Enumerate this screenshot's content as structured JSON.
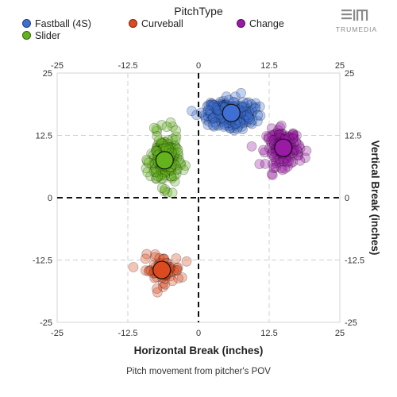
{
  "legend": {
    "title": "PitchType",
    "items": [
      {
        "label": "Fastball (4S)",
        "color": "#3f6fd4"
      },
      {
        "label": "Curveball",
        "color": "#dd4a1f"
      },
      {
        "label": "Change",
        "color": "#9a1aa6"
      },
      {
        "label": "Slider",
        "color": "#64b31c"
      }
    ]
  },
  "logo": {
    "text": "TRUMEDIA"
  },
  "chart_data": {
    "type": "scatter",
    "xlabel": "Horizontal Break (inches)",
    "ylabel": "Vertical Break (inches)",
    "caption": "Pitch movement from pitcher's POV",
    "xlim": [
      -25,
      25
    ],
    "ylim": [
      -25,
      25
    ],
    "xticks": [
      -25,
      -12.5,
      0,
      12.5,
      25
    ],
    "yticks": [
      -25,
      -12.5,
      0,
      12.5,
      25
    ],
    "tick_labels": [
      "-25",
      "-12.5",
      "0",
      "12.5",
      "25"
    ],
    "grid": true,
    "series": [
      {
        "name": "Fastball (4S)",
        "color": "#3f6fd4",
        "average": [
          5.8,
          17.0
        ],
        "spread": [
          3.4,
          2.1
        ],
        "count": 260
      },
      {
        "name": "Curveball",
        "color": "#dd4a1f",
        "average": [
          -6.5,
          -14.5
        ],
        "spread": [
          2.7,
          2.3
        ],
        "count": 70
      },
      {
        "name": "Change",
        "color": "#9a1aa6",
        "average": [
          15.0,
          10.0
        ],
        "spread": [
          2.4,
          3.0
        ],
        "count": 150
      },
      {
        "name": "Slider",
        "color": "#64b31c",
        "average": [
          -6.0,
          7.5
        ],
        "spread": [
          2.0,
          4.2
        ],
        "count": 200
      }
    ]
  }
}
